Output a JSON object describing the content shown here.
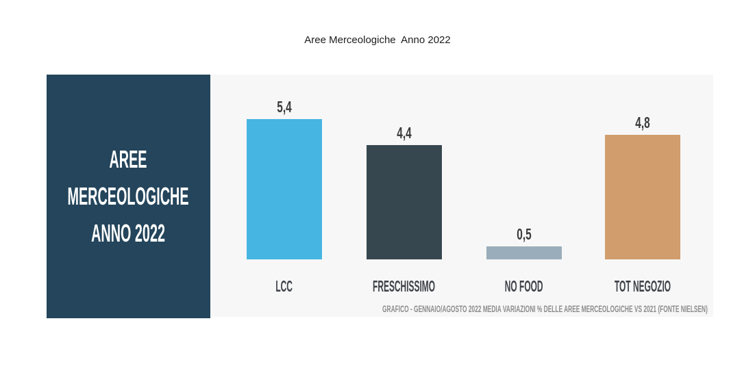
{
  "page": {
    "title": "Aree Merceologiche  Anno 2022",
    "background": "#ffffff"
  },
  "panel": {
    "lines": [
      "AREE",
      "MERCEOLOGICHE",
      "ANNO 2022"
    ],
    "background": "#24455b",
    "text_color": "#ffffff"
  },
  "chart_data": {
    "type": "bar",
    "title": "Aree Merceologiche  Anno 2022",
    "categories": [
      "LCC",
      "FRESCHISSIMO",
      "NO FOOD",
      "TOT NEGOZIO"
    ],
    "values": [
      5.4,
      4.4,
      0.5,
      4.8
    ],
    "value_labels": [
      "5,4",
      "4,4",
      "0,5",
      "4,8"
    ],
    "bar_colors": [
      "#46b5e2",
      "#37474f",
      "#9aadba",
      "#d19d6c"
    ],
    "xlabel": "",
    "ylabel": "",
    "ylim": [
      0,
      6
    ],
    "grid": false,
    "legend_position": "none",
    "plot_background": "#f7f7f7",
    "caption": "GRAFICO  - GENNAIO/AGOSTO 2022 MEDIA VARIAZIONI % DELLE AREE MERCEOLOGICHE VS 2021 (FONTE NIELSEN)"
  },
  "colors": {
    "value_label": "#3a3a3a",
    "category_label": "#3d4249",
    "caption": "#8c8c8c"
  }
}
